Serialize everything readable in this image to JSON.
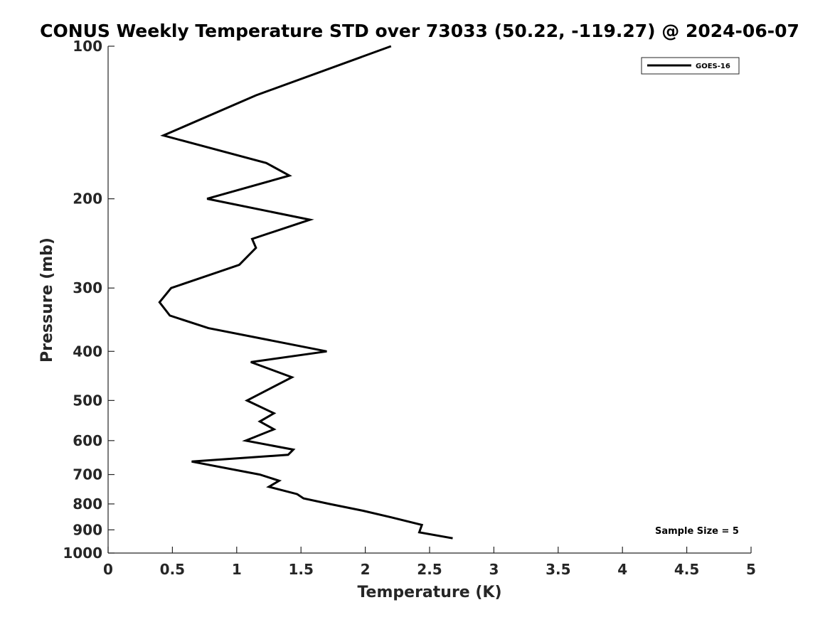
{
  "chart_data": {
    "type": "line",
    "title": "CONUS Weekly Temperature STD over 73033 (50.22, -119.27) @ 2024-06-07",
    "xlabel": "Temperature (K)",
    "ylabel": "Pressure (mb)",
    "xlim": [
      0,
      5
    ],
    "ylim": [
      1000,
      100
    ],
    "yscale": "log",
    "y_inverted": true,
    "x_ticks": [
      "0",
      "0.5",
      "1",
      "1.5",
      "2",
      "2.5",
      "3",
      "3.5",
      "4",
      "4.5",
      "5"
    ],
    "y_ticks": [
      "100",
      "200",
      "300",
      "400",
      "500",
      "600",
      "700",
      "800",
      "900",
      "1000"
    ],
    "grid": false,
    "legend_position": "top-right",
    "annotation": "Sample Size = 5",
    "series": [
      {
        "name": "GOES-16",
        "color": "#000000",
        "points": [
          [
            2.2,
            100
          ],
          [
            1.15,
            125
          ],
          [
            0.43,
            150
          ],
          [
            1.23,
            170
          ],
          [
            1.41,
            180
          ],
          [
            0.77,
            200
          ],
          [
            1.57,
            220
          ],
          [
            1.12,
            240
          ],
          [
            1.15,
            250
          ],
          [
            1.02,
            270
          ],
          [
            0.49,
            300
          ],
          [
            0.4,
            320
          ],
          [
            0.48,
            340
          ],
          [
            0.78,
            360
          ],
          [
            1.7,
            400
          ],
          [
            1.11,
            420
          ],
          [
            1.43,
            450
          ],
          [
            1.08,
            500
          ],
          [
            1.29,
            530
          ],
          [
            1.18,
            550
          ],
          [
            1.29,
            570
          ],
          [
            1.07,
            600
          ],
          [
            1.44,
            625
          ],
          [
            1.4,
            640
          ],
          [
            0.65,
            660
          ],
          [
            1.18,
            700
          ],
          [
            1.33,
            720
          ],
          [
            1.25,
            740
          ],
          [
            1.47,
            765
          ],
          [
            1.52,
            780
          ],
          [
            1.72,
            800
          ],
          [
            1.98,
            825
          ],
          [
            2.2,
            850
          ],
          [
            2.44,
            880
          ],
          [
            2.42,
            910
          ],
          [
            2.68,
            935
          ]
        ]
      }
    ]
  }
}
